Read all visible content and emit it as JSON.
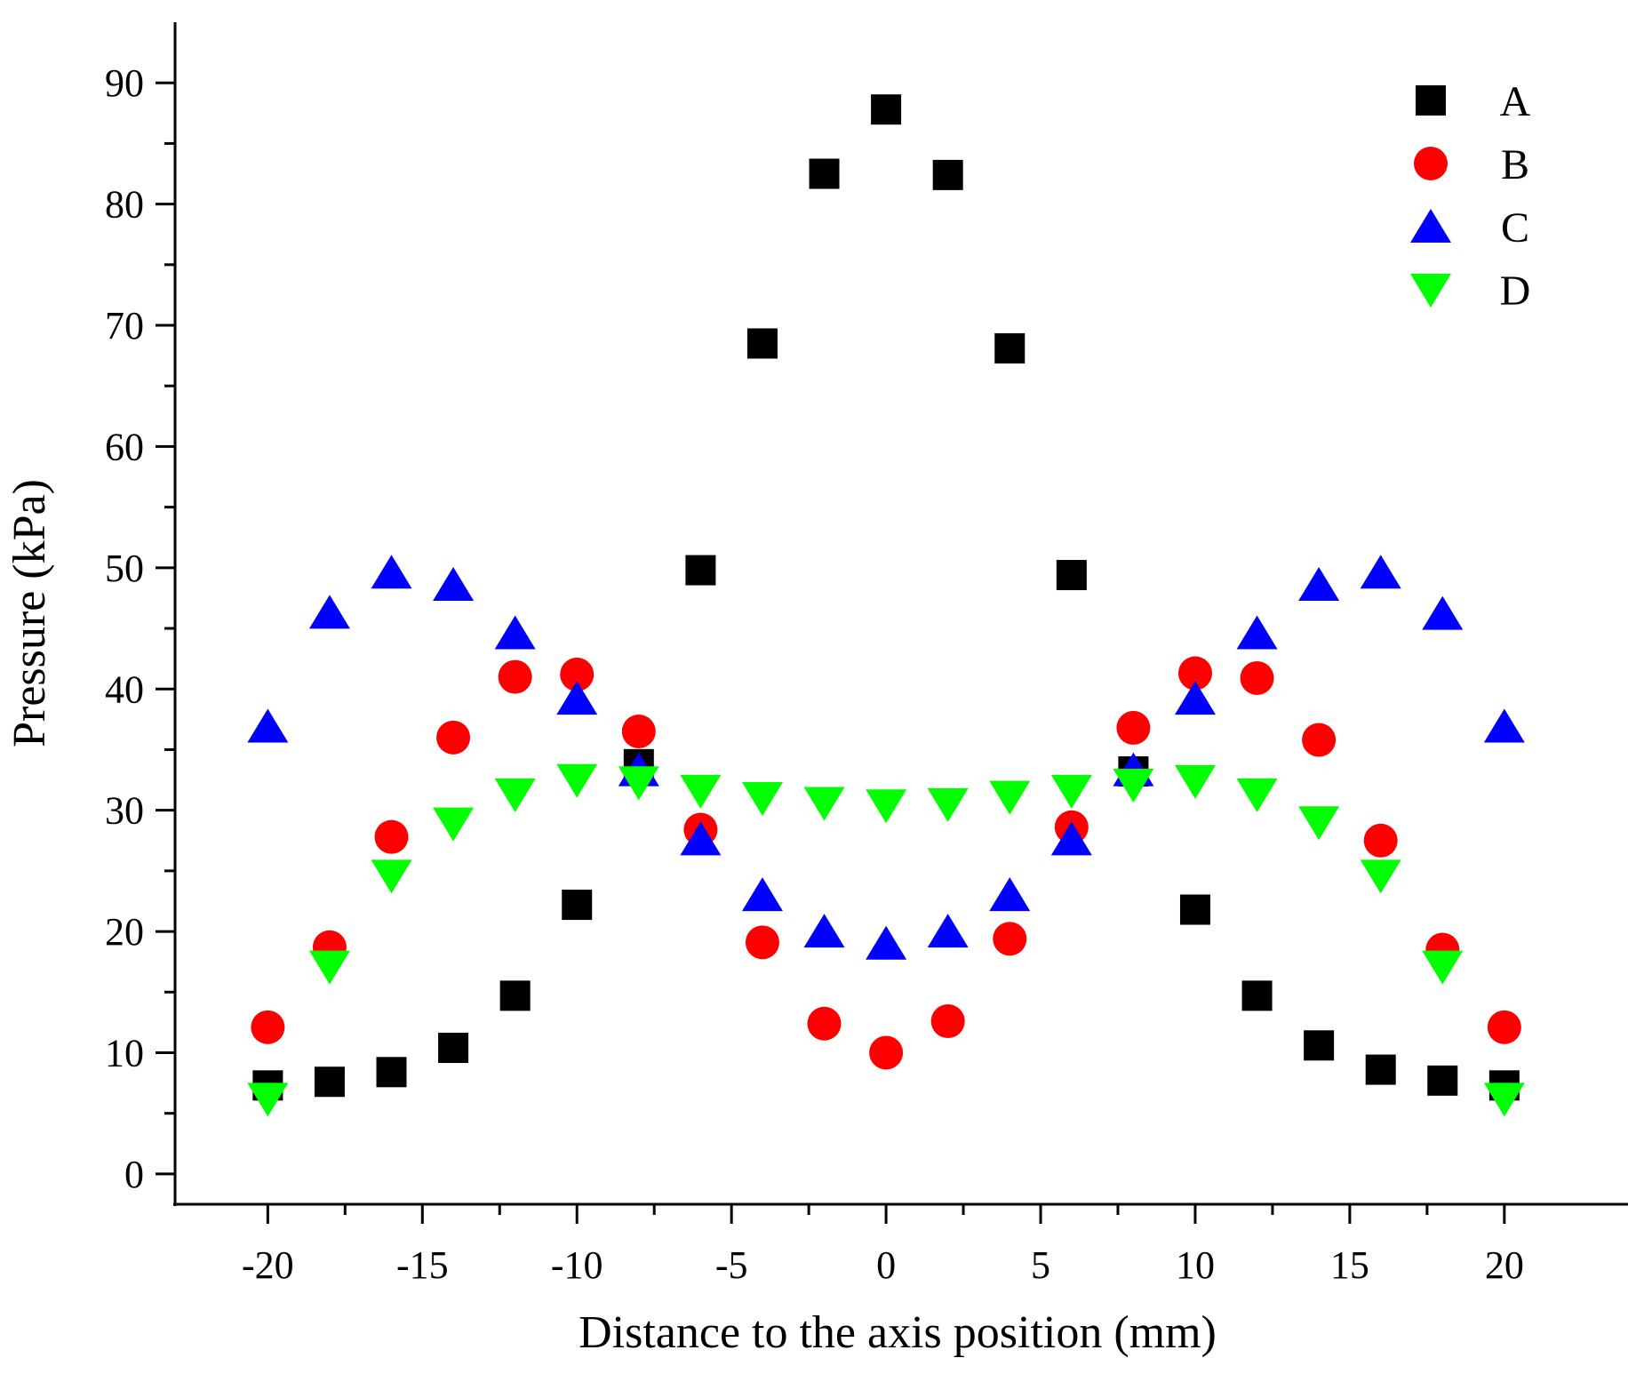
{
  "chart_data": {
    "type": "scatter",
    "title": "",
    "xlabel": "Distance to the axis position (mm)",
    "ylabel": "Pressure (kPa)",
    "xlim": [
      -23,
      24
    ],
    "ylim": [
      -2.5,
      95
    ],
    "x_ticks": [
      -20,
      -15,
      -10,
      -5,
      0,
      5,
      10,
      15,
      20
    ],
    "x_tick_labels": [
      "-20",
      "-15",
      "-10",
      "-5",
      "0",
      "5",
      "10",
      "15",
      "20"
    ],
    "y_ticks": [
      0,
      10,
      20,
      30,
      40,
      50,
      60,
      70,
      80,
      90
    ],
    "y_tick_labels": [
      "0",
      "10",
      "20",
      "30",
      "40",
      "50",
      "60",
      "70",
      "80",
      "90"
    ],
    "grid": false,
    "legend_position": "top-right",
    "x": [
      -20,
      -18,
      -16,
      -14,
      -12,
      -10,
      -8,
      -6,
      -4,
      -2,
      0,
      2,
      4,
      6,
      8,
      10,
      12,
      14,
      16,
      18,
      20
    ],
    "series": [
      {
        "name": "A",
        "marker": "square",
        "color": "#000000",
        "values": [
          7.3,
          7.6,
          8.4,
          10.4,
          14.7,
          22.2,
          33.8,
          49.8,
          68.5,
          82.5,
          87.8,
          82.4,
          68.1,
          49.4,
          33.2,
          21.8,
          14.7,
          10.6,
          8.6,
          7.7,
          7.3
        ]
      },
      {
        "name": "B",
        "marker": "circle",
        "color": "#ff0000",
        "values": [
          12.1,
          18.7,
          27.8,
          36.0,
          41.0,
          41.2,
          36.5,
          28.4,
          19.1,
          12.4,
          10.0,
          12.6,
          19.4,
          28.6,
          36.8,
          41.3,
          40.9,
          35.8,
          27.5,
          18.5,
          12.1
        ]
      },
      {
        "name": "C",
        "marker": "triangle-up",
        "color": "#0000ff",
        "values": [
          36.9,
          46.3,
          49.6,
          48.6,
          44.6,
          39.2,
          33.3,
          27.6,
          23.0,
          20.0,
          19.0,
          20.0,
          23.0,
          27.6,
          33.3,
          39.2,
          44.6,
          48.6,
          49.6,
          46.2,
          36.9
        ]
      },
      {
        "name": "D",
        "marker": "triangle-down",
        "color": "#00ff00",
        "values": [
          6.2,
          17.1,
          24.6,
          28.9,
          31.3,
          32.5,
          32.3,
          31.6,
          31.0,
          30.6,
          30.4,
          30.5,
          31.1,
          31.6,
          32.1,
          32.4,
          31.3,
          29.0,
          24.6,
          17.1,
          6.2
        ]
      }
    ]
  }
}
